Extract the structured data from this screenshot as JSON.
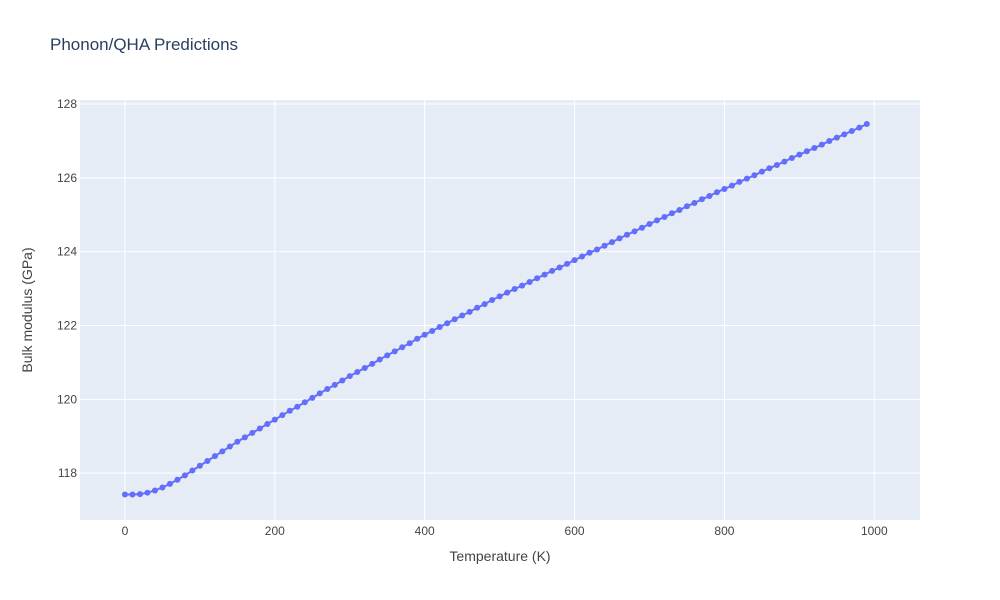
{
  "chart_data": {
    "type": "line",
    "title": "Phonon/QHA Predictions",
    "x_label": "Temperature (K)",
    "y_label": "Bulk modulus (GPa)",
    "x": [
      0,
      10,
      20,
      30,
      40,
      50,
      60,
      70,
      80,
      90,
      100,
      110,
      120,
      130,
      140,
      150,
      160,
      170,
      180,
      190,
      200,
      210,
      220,
      230,
      240,
      250,
      260,
      270,
      280,
      290,
      300,
      310,
      320,
      330,
      340,
      350,
      360,
      370,
      380,
      390,
      400,
      410,
      420,
      430,
      440,
      450,
      460,
      470,
      480,
      490,
      500,
      510,
      520,
      530,
      540,
      550,
      560,
      570,
      580,
      590,
      600,
      610,
      620,
      630,
      640,
      650,
      660,
      670,
      680,
      690,
      700,
      710,
      720,
      730,
      740,
      750,
      760,
      770,
      780,
      790,
      800,
      810,
      820,
      830,
      840,
      850,
      860,
      870,
      880,
      890,
      900,
      910,
      920,
      930,
      940,
      950,
      960,
      970,
      980,
      990
    ],
    "series": [
      {
        "color": "#636efa",
        "values": [
          117.42,
          117.42,
          117.43,
          117.47,
          117.53,
          117.61,
          117.71,
          117.82,
          117.94,
          118.07,
          118.2,
          118.33,
          118.46,
          118.59,
          118.72,
          118.85,
          118.97,
          119.09,
          119.21,
          119.33,
          119.45,
          119.57,
          119.69,
          119.8,
          119.92,
          120.04,
          120.16,
          120.28,
          120.39,
          120.51,
          120.63,
          120.74,
          120.85,
          120.96,
          121.08,
          121.19,
          121.3,
          121.41,
          121.52,
          121.64,
          121.75,
          121.85,
          121.96,
          122.06,
          122.17,
          122.27,
          122.37,
          122.48,
          122.58,
          122.69,
          122.79,
          122.89,
          122.99,
          123.08,
          123.18,
          123.28,
          123.38,
          123.48,
          123.57,
          123.67,
          123.77,
          123.87,
          123.97,
          124.06,
          124.16,
          124.26,
          124.36,
          124.46,
          124.55,
          124.65,
          124.75,
          124.85,
          124.94,
          125.04,
          125.13,
          125.23,
          125.32,
          125.42,
          125.51,
          125.61,
          125.7,
          125.79,
          125.89,
          125.98,
          126.07,
          126.17,
          126.26,
          126.35,
          126.44,
          126.54,
          126.63,
          126.72,
          126.81,
          126.9,
          127.0,
          127.09,
          127.18,
          127.27,
          127.36,
          127.46
        ]
      }
    ],
    "xlim": [
      -60,
      1061
    ],
    "ylim": [
      116.73,
      128.11
    ],
    "xticks": [
      0,
      200,
      400,
      600,
      800,
      1000
    ],
    "yticks": [
      118,
      120,
      122,
      124,
      126,
      128
    ],
    "grid": true
  }
}
